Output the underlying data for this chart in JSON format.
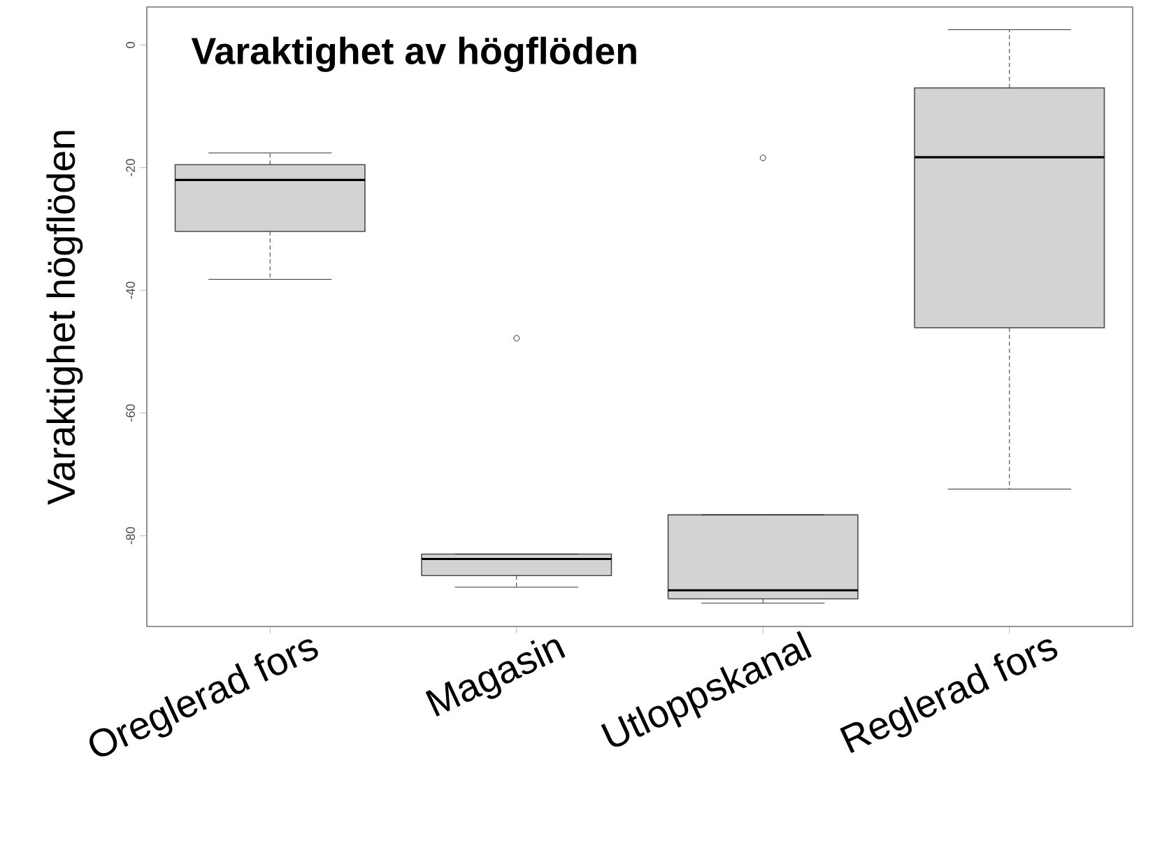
{
  "chart_data": {
    "type": "box",
    "title": "Varaktighet av högflöden",
    "ylabel": "Varaktighet högflöden",
    "categories": [
      "Oreglerad fors",
      "Magasin",
      "Utloppskanal",
      "Reglerad fors"
    ],
    "series": [
      {
        "color": "#d3d3d3",
        "boxes": [
          {
            "low": -38.2,
            "q1": -30.4,
            "median": -22.0,
            "q3": -19.5,
            "high": -17.6
          },
          {
            "low": -88.4,
            "q1": -86.5,
            "median": -83.8,
            "q3": -83.0,
            "high": -83.0,
            "outliers": [
              -47.8
            ]
          },
          {
            "low": -91.0,
            "q1": -90.3,
            "median": -88.9,
            "q3": -76.6,
            "high": -76.6,
            "outliers": [
              -18.4
            ]
          },
          {
            "low": -72.4,
            "q1": -46.1,
            "median": -18.3,
            "q3": -7.0,
            "high": 2.5
          }
        ]
      }
    ],
    "ylim": [
      -94.8,
      6.2
    ],
    "yticks": [
      0,
      -20,
      -40,
      -60,
      -80
    ],
    "marker": "circle",
    "grid": false
  }
}
